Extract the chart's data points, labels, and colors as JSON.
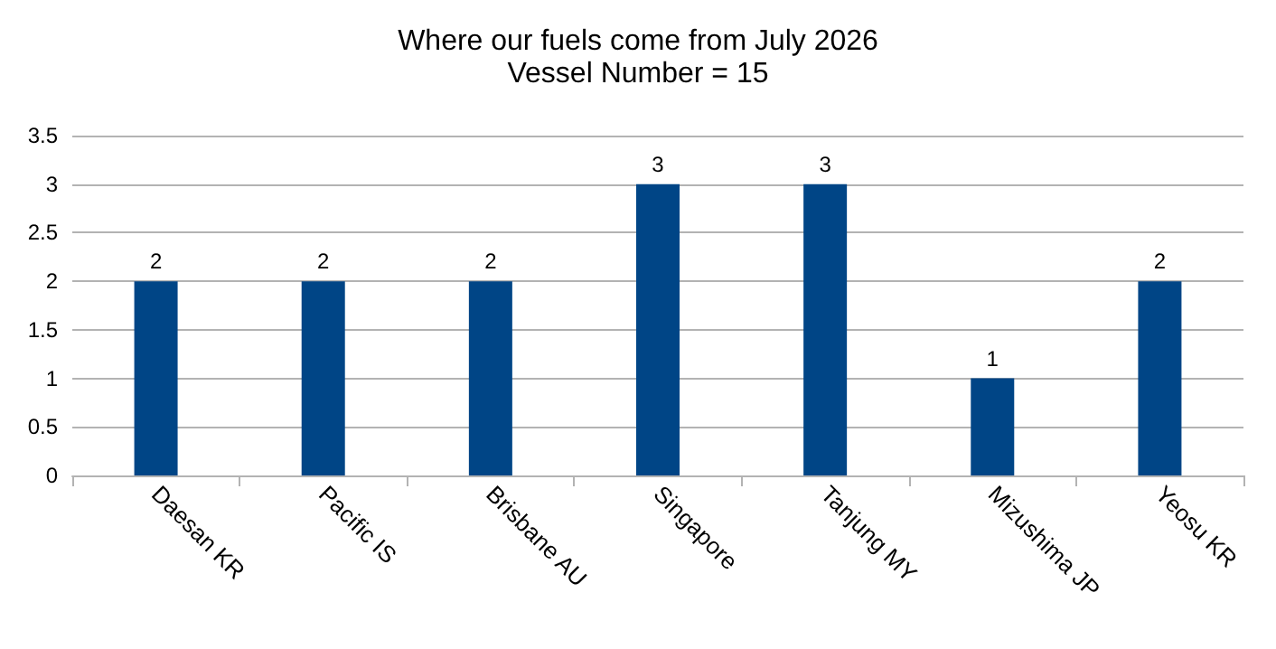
{
  "chart_data": {
    "type": "bar",
    "title": "Where our fuels come from July 2026",
    "subtitle": "Vessel Number = 15",
    "categories": [
      "Daesan KR",
      "Pacific IS",
      "Brisbane AU",
      "Singapore",
      "Tanjung MY",
      "Mizushima JP",
      "Yeosu KR"
    ],
    "values": [
      2,
      2,
      2,
      3,
      3,
      1,
      2
    ],
    "color": "#004586",
    "ylim": [
      0,
      3.5
    ],
    "yticks": [
      0,
      0.5,
      1,
      1.5,
      2,
      2.5,
      3,
      3.5
    ],
    "grid": "y",
    "data_labels": true
  }
}
